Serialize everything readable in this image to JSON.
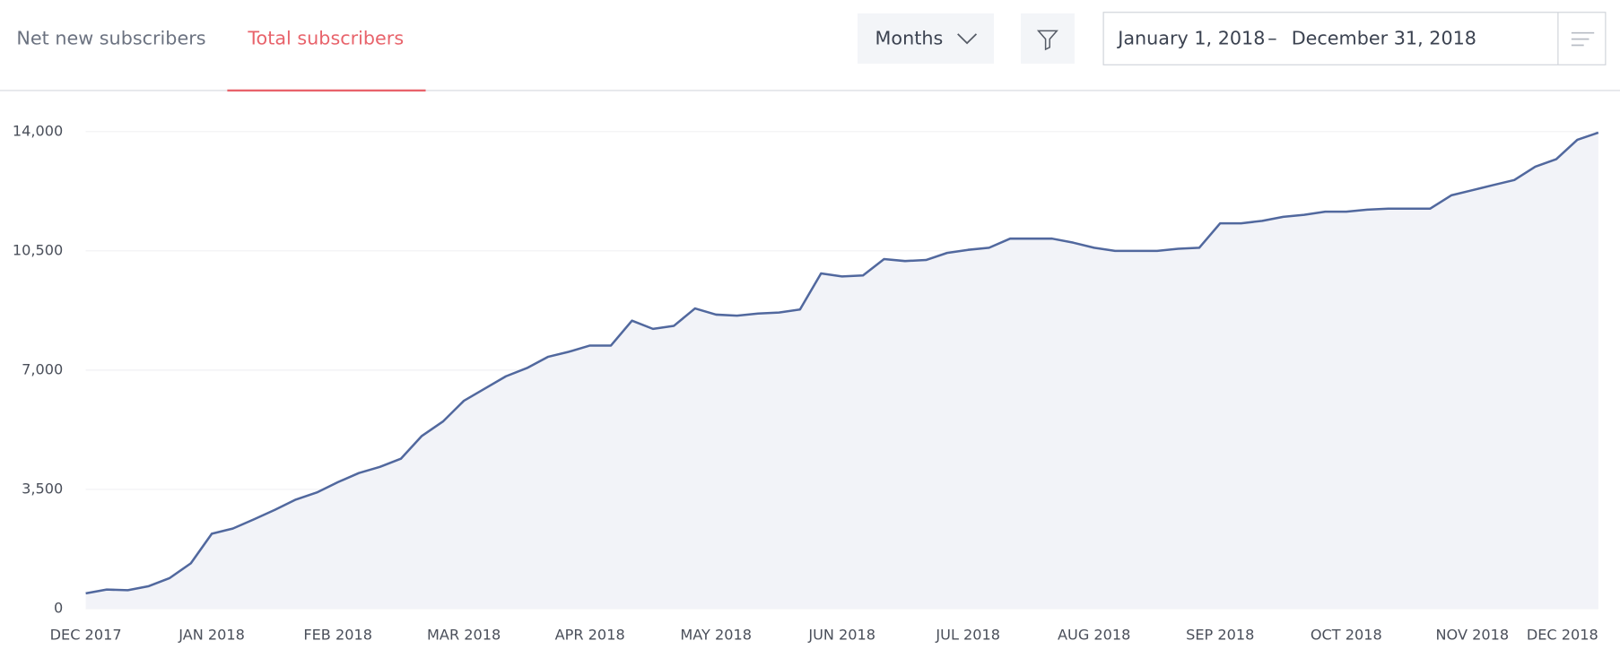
{
  "tabs": [
    "Net new subscribers",
    "Total subscribers"
  ],
  "period_select": "Months",
  "date_range": {
    "start": "January 1, 2018",
    "separator": "–",
    "end": "December 31, 2018"
  },
  "chart_data": {
    "type": "line",
    "categories": [
      "DEC 2017",
      null,
      null,
      null,
      null,
      null,
      "JAN 2018",
      null,
      null,
      null,
      null,
      null,
      "FEB 2018",
      null,
      null,
      null,
      null,
      null,
      "MAR 2018",
      null,
      null,
      null,
      null,
      null,
      "APR 2018",
      null,
      null,
      null,
      null,
      null,
      "MAY 2018",
      null,
      null,
      null,
      null,
      null,
      "JUN 2018",
      null,
      null,
      null,
      null,
      null,
      "JUL 2018",
      null,
      null,
      null,
      null,
      null,
      "AUG 2018",
      null,
      null,
      null,
      null,
      null,
      "SEP 2018",
      null,
      null,
      null,
      null,
      null,
      "OCT 2018",
      null,
      null,
      null,
      null,
      null,
      "NOV 2018",
      null,
      null,
      null,
      null,
      null,
      "DEC 2018"
    ],
    "series": [
      {
        "name": "Total subscribers",
        "color": "#51689e",
        "values": [
          450,
          560,
          540,
          660,
          900,
          1330,
          2200,
          2350,
          2620,
          2900,
          3200,
          3410,
          3710,
          3980,
          4160,
          4400,
          5070,
          5490,
          6100,
          6460,
          6820,
          7060,
          7390,
          7540,
          7720,
          7720,
          8450,
          8210,
          8300,
          8810,
          8630,
          8600,
          8660,
          8690,
          8780,
          9840,
          9750,
          9780,
          10260,
          10200,
          10230,
          10440,
          10530,
          10590,
          10860,
          10860,
          10860,
          10740,
          10590,
          10500,
          10500,
          10500,
          10560,
          10590,
          11310,
          11310,
          11380,
          11500,
          11560,
          11650,
          11650,
          11710,
          11740,
          11740,
          11740,
          12130,
          12280,
          12430,
          12580,
          12970,
          13190,
          13760,
          13970
        ]
      }
    ],
    "ylim": [
      0,
      14000
    ],
    "yticks": [
      0,
      {
        "value": 3500,
        "label": "3,500"
      },
      {
        "value": 7000,
        "label": "7,000"
      },
      {
        "value": 10500,
        "label": "10,500"
      },
      {
        "value": 14000,
        "label": "14,000"
      }
    ],
    "grid": true,
    "area_fill": "#f2f3f8"
  }
}
